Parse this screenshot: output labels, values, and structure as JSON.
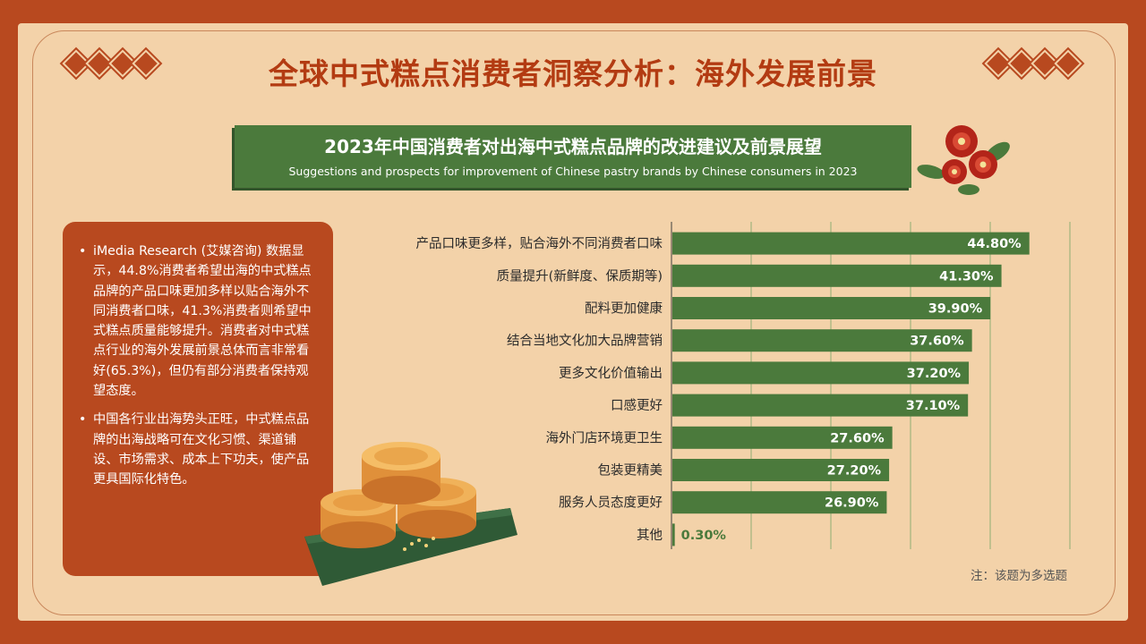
{
  "title": "全球中式糕点消费者洞察分析：海外发展前景",
  "banner": {
    "title_cn": "2023年中国消费者对出海中式糕点品牌的改进建议及前景展望",
    "title_en": "Suggestions and prospects for improvement of Chinese pastry brands by Chinese consumers in 2023"
  },
  "panel": {
    "bullets": [
      "iMedia Research (艾媒咨询) 数据显示，44.8%消费者希望出海的中式糕点品牌的产品口味更加多样以贴合海外不同消费者口味，41.3%消费者则希望中式糕点质量能够提升。消费者对中式糕点行业的海外发展前景总体而言非常看好(65.3%)，但仍有部分消费者保持观望态度。",
      "中国各行业出海势头正旺，中式糕点品牌的出海战略可在文化习惯、渠道铺设、市场需求、成本上下功夫，使产品更具国际化特色。"
    ]
  },
  "note": "注：该题为多选题",
  "colors": {
    "background": "#b8491f",
    "paper": "#f3d2a9",
    "accent_red": "#b33b12",
    "bar_green": "#4b7a3c",
    "grid": "#8fae74"
  },
  "chart_data": {
    "type": "bar",
    "orientation": "horizontal",
    "categories": [
      "产品口味更多样，贴合海外不同消费者口味",
      "质量提升(新鲜度、保质期等)",
      "配料更加健康",
      "结合当地文化加大品牌营销",
      "更多文化价值输出",
      "口感更好",
      "海外门店环境更卫生",
      "包装更精美",
      "服务人员态度更好",
      "其他"
    ],
    "values": [
      44.8,
      41.3,
      39.9,
      37.6,
      37.2,
      37.1,
      27.6,
      27.2,
      26.9,
      0.3
    ],
    "value_labels": [
      "44.80%",
      "41.30%",
      "39.90%",
      "37.60%",
      "37.20%",
      "37.10%",
      "27.60%",
      "27.20%",
      "26.90%",
      "0.30%"
    ],
    "xlim": [
      0,
      50
    ],
    "grid": true,
    "unit": "%"
  }
}
